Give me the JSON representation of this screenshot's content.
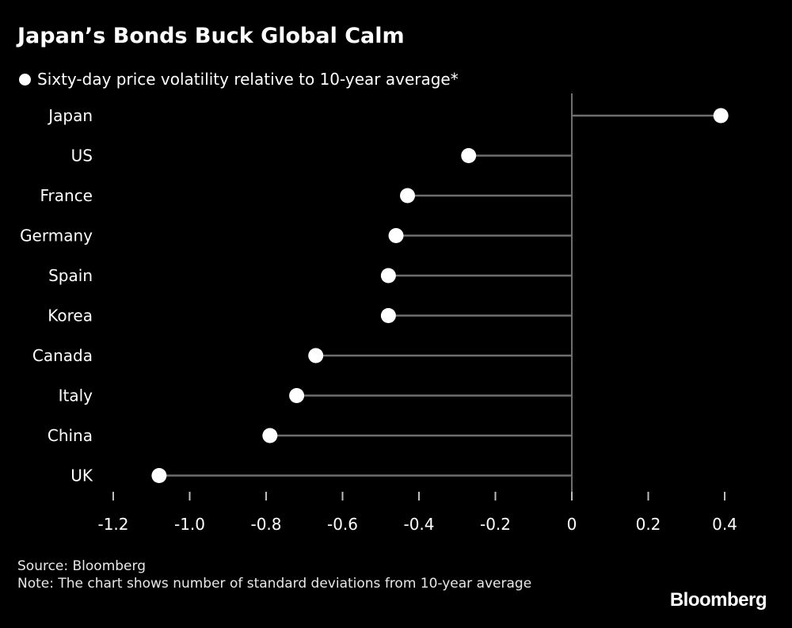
{
  "title": "Japan’s Bonds Buck Global Calm",
  "legend": {
    "label": "Sixty-day price volatility relative to 10-year average*"
  },
  "chart_data": {
    "type": "lollipop",
    "title": "Japan’s Bonds Buck Global Calm",
    "categories": [
      "Japan",
      "US",
      "France",
      "Germany",
      "Spain",
      "Korea",
      "Canada",
      "Italy",
      "China",
      "UK"
    ],
    "series": [
      {
        "name": "Sixty-day price volatility relative to 10-year average*",
        "values": [
          0.39,
          -0.27,
          -0.43,
          -0.46,
          -0.48,
          -0.48,
          -0.67,
          -0.72,
          -0.79,
          -1.08
        ]
      }
    ],
    "xlim": [
      -1.2,
      0.4
    ],
    "xticks": [
      -1.2,
      -1.0,
      -0.8,
      -0.6,
      -0.4,
      -0.2,
      0,
      0.2,
      0.4
    ],
    "xtick_labels": [
      "-1.2",
      "-1.0",
      "-0.8",
      "-0.6",
      "-0.4",
      "-0.2",
      "0",
      "0.2",
      "0.4"
    ],
    "baseline": 0,
    "grid": false,
    "legend_position": "top-left",
    "colors": {
      "background": "#000000",
      "marker": "#ffffff",
      "stem": "#6e6e6e",
      "text": "#ffffff"
    }
  },
  "footer": {
    "source": "Source: Bloomberg",
    "note": "Note: The chart shows number of standard deviations from 10-year average"
  },
  "brand": "Bloomberg"
}
